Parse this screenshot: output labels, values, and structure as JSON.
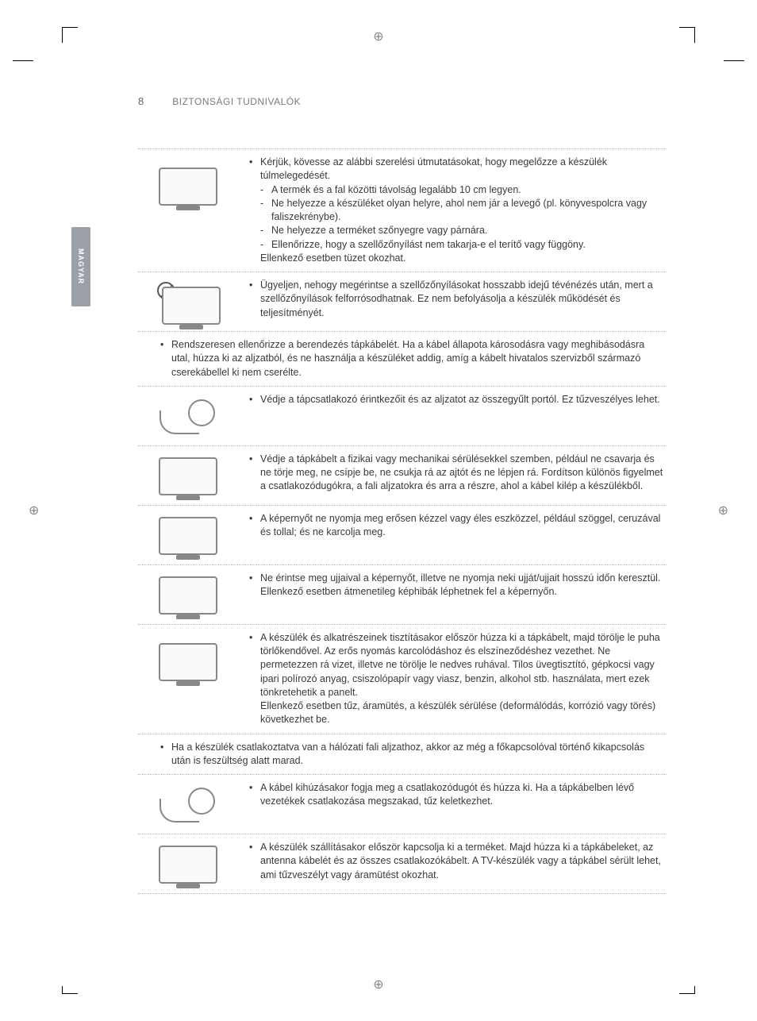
{
  "meta": {
    "page_number": "8",
    "section_title": "BIZTONSÁGI TUDNIVALÓK",
    "language_tab": "MAGYAR"
  },
  "rows": [
    {
      "id": "ventilation",
      "illus": "tv-wall",
      "full_width": false,
      "bullets": [
        {
          "text": "Kérjük, kövesse az alábbi szerelési útmutatásokat, hogy megelőzze a készülék túlmelegedését.",
          "sub_dash": [
            "A termék és a fal közötti távolság legalább 10 cm legyen.",
            "Ne helyezze a készüléket olyan helyre, ahol nem jár a levegő (pl. könyvespolcra vagy faliszekrénybe).",
            "Ne helyezze a terméket szőnyegre vagy párnára.",
            "Ellenőrizze, hogy a szellőzőnyílást nem takarja-e el terítő vagy függöny."
          ],
          "trailing": "Ellenkező esetben tüzet okozhat."
        }
      ]
    },
    {
      "id": "vents-hot",
      "illus": "tv-prohibit",
      "full_width": false,
      "bullets": [
        {
          "text": "Ügyeljen, nehogy megérintse a szellőzőnyílásokat hosszabb idejű tévénézés után, mert a szellőzőnyílások felforrósodhatnak. Ez nem befolyásolja a készülék működését és teljesítményét."
        }
      ]
    },
    {
      "id": "check-cord",
      "full_width": true,
      "bullets": [
        {
          "text": "Rendszeresen ellenőrizze a berendezés tápkábelét. Ha a kábel állapota károsodásra vagy meghibásodásra utal, húzza ki az aljzatból, és ne használja a készüléket addig, amíg a kábelt hivatalos szervizből származó cserekábellel ki nem cserélte."
        }
      ]
    },
    {
      "id": "dust",
      "illus": "plug-dust",
      "full_width": false,
      "bullets": [
        {
          "text": "Védje a tápcsatlakozó érintkezőit és az aljzatot az összegyűlt portól. Ez tűzveszélyes lehet."
        }
      ]
    },
    {
      "id": "cable-damage",
      "illus": "tv",
      "full_width": false,
      "bullets": [
        {
          "text": "Védje a tápkábelt a fizikai vagy mechanikai sérülésekkel szemben, például ne csavarja és ne törje meg, ne csípje be, ne csukja rá az ajtót és ne lépjen rá. Fordítson különös figyelmet a csatlakozódugókra, a fali aljzatokra és arra a részre, ahol a kábel kilép a készülékből."
        }
      ]
    },
    {
      "id": "press-screen",
      "illus": "tv",
      "full_width": false,
      "bullets": [
        {
          "text": "A képernyőt ne nyomja meg erősen kézzel vagy éles eszközzel, például szöggel, ceruzával és tollal; és ne karcolja meg."
        }
      ]
    },
    {
      "id": "touch-screen",
      "illus": "tv",
      "full_width": false,
      "bullets": [
        {
          "text": "Ne érintse meg ujjaival a képernyőt, illetve ne nyomja neki ujját/ujjait hosszú időn keresztül. Ellenkező esetben átmenetileg képhibák léphetnek fel a képernyőn."
        }
      ]
    },
    {
      "id": "cleaning",
      "illus": "tv-person",
      "full_width": false,
      "bullets": [
        {
          "text": "A készülék és alkatrészeinek tisztításakor először húzza ki a tápkábelt, majd törölje le puha törlőkendővel. Az erős nyomás karcolódáshoz és elszíneződéshez vezethet. Ne permetezzen rá vizet, illetve ne törölje le nedves ruhával. Tilos üvegtisztító, gépkocsi vagy ipari polírozó anyag, csiszolópapír vagy viasz, benzin, alkohol stb. használata, mert ezek tönkretehetik a panelt.",
          "trailing": "Ellenkező esetben tűz, áramütés, a készülék sérülése (deformálódás, korrózió vagy törés) következhet be."
        }
      ]
    },
    {
      "id": "mains-live",
      "full_width": true,
      "bullets": [
        {
          "text": "Ha a készülék csatlakoztatva van a hálózati fali aljzathoz, akkor az még a főkapcsolóval történő kikapcsolás után is feszültség alatt marad."
        }
      ]
    },
    {
      "id": "unplug",
      "illus": "plug-pull",
      "full_width": false,
      "bullets": [
        {
          "text": "A kábel kihúzásakor fogja meg a csatlakozódugót és húzza ki. Ha a tápkábelben lévő vezetékek csatlakozása megszakad, tűz keletkezhet."
        }
      ]
    },
    {
      "id": "moving",
      "illus": "tv",
      "full_width": false,
      "last": true,
      "bullets": [
        {
          "text": "A készülék szállításakor először kapcsolja ki a terméket. Majd húzza ki a tápkábeleket, az antenna kábelét és az összes csatlakozókábelt. A TV-készülék vagy a tápkábel sérült lehet, ami tűzveszélyt vagy áramütést okozhat."
        }
      ]
    }
  ]
}
